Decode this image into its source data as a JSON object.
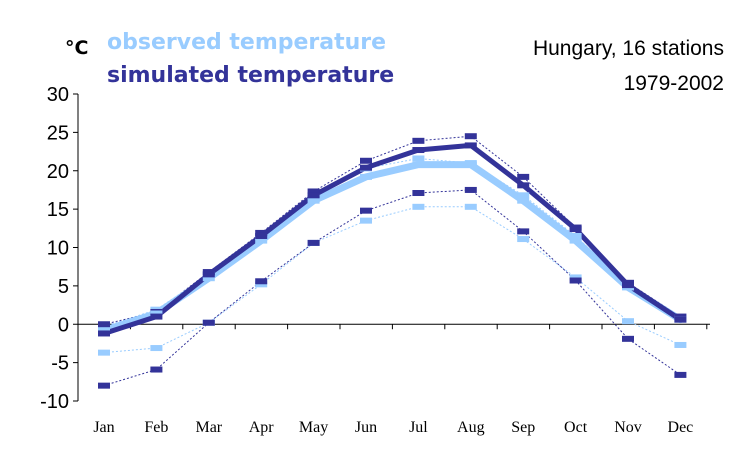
{
  "chart_data": {
    "type": "line",
    "unit_label": "°C",
    "title_lines": [
      "Hungary, 16 stations",
      "1979-2002"
    ],
    "categories": [
      "Jan",
      "Feb",
      "Mar",
      "Apr",
      "May",
      "Jun",
      "Jul",
      "Aug",
      "Sep",
      "Oct",
      "Nov",
      "Dec"
    ],
    "ylim": [
      -10,
      30
    ],
    "yticks": [
      30,
      25,
      20,
      15,
      10,
      5,
      0,
      -5,
      -10
    ],
    "series": [
      {
        "name": "observed temperature",
        "color": "#99ccff",
        "mean": [
          -0.8,
          1.4,
          6.0,
          10.9,
          16.1,
          19.2,
          20.8,
          20.8,
          16.1,
          10.9,
          4.8,
          0.6
        ],
        "max": [
          -0.3,
          1.9,
          6.5,
          11.4,
          16.6,
          20.3,
          21.6,
          21.0,
          16.8,
          11.5,
          5.2,
          0.9
        ],
        "min": [
          -3.7,
          -3.1,
          0.2,
          5.2,
          10.6,
          13.5,
          15.3,
          15.3,
          11.1,
          6.1,
          0.4,
          -2.7
        ]
      },
      {
        "name": "simulated temperature",
        "color": "#333399",
        "mean": [
          -1.2,
          1.0,
          6.5,
          11.5,
          16.8,
          20.4,
          22.7,
          23.3,
          18.1,
          12.4,
          5.1,
          0.6
        ],
        "max": [
          0.0,
          1.6,
          6.8,
          11.9,
          17.3,
          21.3,
          23.9,
          24.5,
          19.2,
          12.6,
          5.4,
          1.0
        ],
        "min": [
          -8.0,
          -5.9,
          0.2,
          5.6,
          10.6,
          14.8,
          17.1,
          17.5,
          12.1,
          5.7,
          -1.9,
          -6.6
        ]
      }
    ]
  }
}
